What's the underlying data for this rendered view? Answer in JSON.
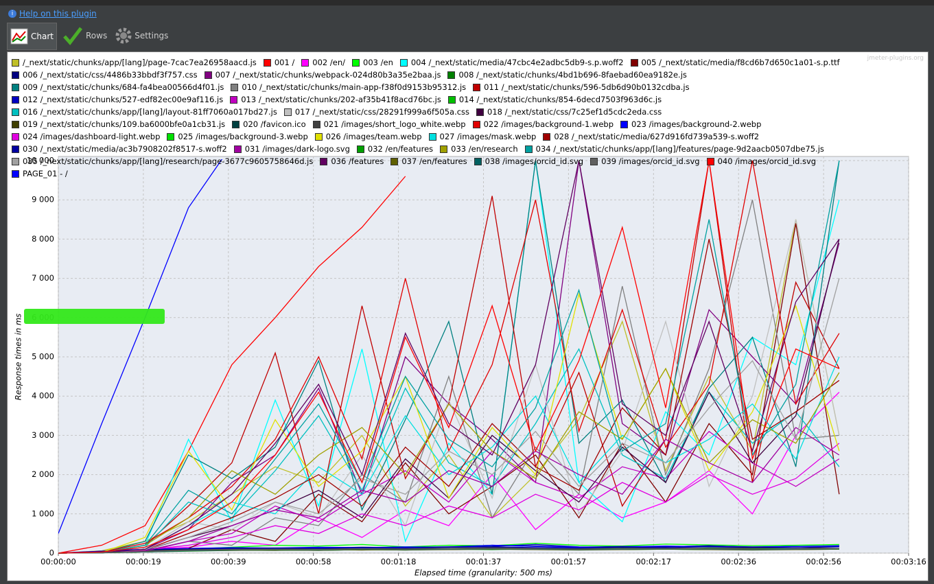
{
  "ui": {
    "help_link": "Help on this plugin",
    "tabs": [
      "Chart",
      "Rows",
      "Settings"
    ],
    "watermark": "jmeter-plugins.org"
  },
  "chart_data": {
    "type": "line",
    "y_label": "Response times in ms",
    "x_label": "Elapsed time (granularity: 500 ms)",
    "xlim": [
      0,
      196
    ],
    "xticks": [
      {
        "value": 0,
        "label": "00:00:00"
      },
      {
        "value": 19.6,
        "label": "00:00:19"
      },
      {
        "value": 39.2,
        "label": "00:00:39"
      },
      {
        "value": 58.8,
        "label": "00:00:58"
      },
      {
        "value": 78.4,
        "label": "00:01:18"
      },
      {
        "value": 98,
        "label": "00:01:37"
      },
      {
        "value": 117.6,
        "label": "00:01:57"
      },
      {
        "value": 137.2,
        "label": "00:02:17"
      },
      {
        "value": 156.8,
        "label": "00:02:36"
      },
      {
        "value": 176.4,
        "label": "00:02:56"
      },
      {
        "value": 196,
        "label": "00:03:16"
      }
    ],
    "ylim": [
      0,
      10000
    ],
    "yticks": [
      0,
      {
        "value": 1000,
        "label": "1 000"
      },
      {
        "value": 2000,
        "label": "2 000"
      },
      {
        "value": 3000,
        "label": "3 000"
      },
      {
        "value": 4000,
        "label": "4 000"
      },
      {
        "value": 5000,
        "label": "5 000"
      },
      {
        "value": 6000,
        "label": "6 000"
      },
      {
        "value": 7000,
        "label": "7 000"
      },
      {
        "value": 8000,
        "label": "8 000"
      },
      {
        "value": 9000,
        "label": "9 000"
      },
      {
        "value": 10000,
        "label": "10 000"
      }
    ],
    "grid": true,
    "x": [
      0,
      10,
      20,
      30,
      40,
      50,
      60,
      70,
      80,
      90,
      100,
      110,
      120,
      130,
      140,
      150,
      160,
      170,
      180
    ],
    "series": [
      {
        "name": "/_next/static/chunks/app/[lang]/page-7cac7ea26958aacd.js",
        "color": "#bfbf28",
        "values": [
          0,
          60,
          300,
          800,
          1500,
          2200,
          1800,
          3000,
          1200,
          2500,
          900,
          2000,
          3400,
          5900,
          2100,
          4500,
          2600,
          8500,
          3000
        ]
      },
      {
        "name": "001 /",
        "color": "#ff0000",
        "values": [
          0,
          200,
          700,
          2600,
          4800,
          6000,
          7300,
          8300,
          9600,
          null,
          null,
          null,
          null,
          null,
          null,
          null,
          null,
          null,
          null
        ]
      },
      {
        "name": "002 /en/",
        "color": "#ff00ff",
        "values": [
          0,
          20,
          100,
          150,
          300,
          200,
          900,
          400,
          1100,
          700,
          2000,
          600,
          1500,
          900,
          1300,
          2100,
          1000,
          3000,
          4100
        ]
      },
      {
        "name": "003 /en",
        "color": "#00ff00",
        "values": [
          0,
          20,
          60,
          100,
          150,
          200,
          180,
          220,
          160,
          200,
          190,
          250,
          200,
          180,
          230,
          210,
          190,
          200,
          220
        ]
      },
      {
        "name": "004 /_next/static/media/47cbc4e2adbc5db9-s.p.woff2",
        "color": "#00ffff",
        "values": [
          0,
          30,
          200,
          2900,
          800,
          3900,
          1200,
          5200,
          300,
          2800,
          1500,
          10000,
          1800,
          800,
          3600,
          2500,
          5500,
          4800,
          9000
        ]
      },
      {
        "name": "005 /_next/static/media/f8cd6b7d650c1a01-s.p.ttf",
        "color": "#800000",
        "values": [
          0,
          10,
          50,
          120,
          600,
          300,
          1500,
          800,
          2300,
          1000,
          1700,
          2500,
          900,
          2800,
          1300,
          3300,
          2000,
          8400,
          1500
        ]
      },
      {
        "name": "006 /_next/static/css/4486b33bbdf3f757.css",
        "color": "#000080",
        "values": [
          0,
          40,
          80,
          100,
          120,
          110,
          130,
          150,
          140,
          160,
          200,
          180,
          150,
          170,
          160,
          190,
          150,
          170,
          180
        ]
      },
      {
        "name": "007 /_next/static/chunks/webpack-024d80b3a35e2baa.js",
        "color": "#800080",
        "values": [
          0,
          10,
          100,
          600,
          1800,
          2500,
          4200,
          1500,
          5000,
          3800,
          2900,
          1800,
          10000,
          3300,
          2500,
          6200,
          5000,
          3800,
          7900
        ]
      },
      {
        "name": "008 /_next/static/chunks/4bd1b696-8faebad60ea9182e.js",
        "color": "#008000",
        "values": [
          0,
          10,
          50,
          80,
          90,
          100,
          120,
          90,
          110,
          100,
          130,
          120,
          110,
          100,
          120,
          90,
          110,
          100,
          120
        ]
      },
      {
        "name": "009 /_next/static/chunks/684-fa4bea00566d4f01.js",
        "color": "#008080",
        "values": [
          0,
          20,
          300,
          2500,
          1900,
          2700,
          4900,
          1100,
          3400,
          5900,
          1500,
          10000,
          2800,
          3900,
          1800,
          4200,
          5500,
          2200,
          10000
        ]
      },
      {
        "name": "010 /_next/static/chunks/main-app-f38f0d9153b95312.js",
        "color": "#808080",
        "values": [
          0,
          10,
          60,
          300,
          200,
          900,
          700,
          2000,
          1300,
          4500,
          900,
          2700,
          1500,
          6800,
          2000,
          4700,
          9000,
          2900,
          3000
        ]
      },
      {
        "name": "011 /_next/static/chunks/596-5db6d90b0132cdba.js",
        "color": "#c00000",
        "values": [
          0,
          20,
          200,
          1200,
          2300,
          5100,
          1000,
          6300,
          1900,
          3800,
          9100,
          2200,
          4600,
          1200,
          2900,
          10000,
          1800,
          6900,
          4700
        ]
      },
      {
        "name": "012 /_next/static/chunks/527-edf82ec00e9af116.js",
        "color": "#0000c0",
        "values": [
          0,
          50,
          90,
          110,
          130,
          120,
          140,
          130,
          150,
          160,
          170,
          220,
          160,
          150,
          170,
          180,
          160,
          170,
          190
        ]
      },
      {
        "name": "013 /_next/static/chunks/202-af35b41f8acd76bc.js",
        "color": "#c000c0",
        "values": [
          0,
          10,
          40,
          300,
          500,
          1200,
          800,
          1500,
          2100,
          1300,
          2600,
          1800,
          1400,
          2200,
          1900,
          3100,
          2300,
          1700,
          2400
        ]
      },
      {
        "name": "014 /_next/static/chunks/854-6decd7503f963d6c.js",
        "color": "#00c000",
        "values": [
          0,
          10,
          30,
          70,
          90,
          100,
          90,
          110,
          100,
          120,
          130,
          110,
          100,
          120,
          110,
          130,
          120,
          110,
          100
        ]
      },
      {
        "name": "016 /_next/static/chunks/app/[lang]/layout-81ff7060a017bd27.js",
        "color": "#00c0c0",
        "values": [
          0,
          20,
          150,
          1300,
          900,
          2100,
          3500,
          1600,
          4200,
          2300,
          1700,
          3300,
          5200,
          2500,
          1900,
          4100,
          2800,
          3600,
          2200
        ]
      },
      {
        "name": "017 /_next/static/css/28291f999a6f505a.css",
        "color": "#c0c0c0",
        "values": [
          0,
          20,
          100,
          800,
          600,
          1300,
          900,
          2500,
          700,
          3900,
          1400,
          4800,
          1000,
          2600,
          5900,
          1700,
          4000,
          8500,
          3000
        ]
      },
      {
        "name": "018 /_next/static/css/7c25ef1d5cdc2eda.css",
        "color": "#400040",
        "values": [
          0,
          10,
          80,
          400,
          700,
          1100,
          1600,
          900,
          2400,
          1400,
          3000,
          2100,
          1300,
          2700,
          1800,
          4100,
          2300,
          3500,
          8000
        ]
      },
      {
        "name": "019 /_next/static/chunks/109.ba6000bfe0a1cb31.js",
        "color": "#404000",
        "values": [
          0,
          10,
          40,
          60,
          80,
          70,
          90,
          80,
          100,
          90,
          110,
          100,
          90,
          100,
          110,
          90,
          100,
          90,
          100
        ]
      },
      {
        "name": "020 /favicon.ico",
        "color": "#004040",
        "values": [
          0,
          10,
          40,
          70,
          80,
          90,
          80,
          100,
          90,
          110,
          100,
          120,
          100,
          90,
          110,
          100,
          90,
          100,
          110
        ]
      },
      {
        "name": "021 /images/short_logo_white.webp",
        "color": "#404040",
        "values": [
          0,
          10,
          60,
          90,
          110,
          100,
          120,
          110,
          130,
          120,
          140,
          130,
          120,
          140,
          130,
          120,
          130,
          140,
          120
        ]
      },
      {
        "name": "022 /images/background-1.webp",
        "color": "#e00000",
        "values": [
          0,
          30,
          250,
          900,
          1700,
          2900,
          5000,
          2400,
          7000,
          2600,
          4800,
          9000,
          3100,
          6200,
          2700,
          4300,
          10000,
          3800,
          5600
        ]
      },
      {
        "name": "023 /images/background-2.webp",
        "color": "#0000ff",
        "values": [
          0,
          50,
          100,
          120,
          140,
          130,
          150,
          140,
          160,
          150,
          200,
          170,
          150,
          160,
          180,
          160,
          150,
          170,
          180
        ]
      },
      {
        "name": "024 /images/dashboard-light.webp",
        "color": "#e000e0",
        "values": [
          0,
          10,
          80,
          200,
          400,
          700,
          500,
          1000,
          700,
          1200,
          900,
          1500,
          1100,
          1800,
          1300,
          2000,
          1500,
          1900,
          2800
        ]
      },
      {
        "name": "025 /images/background-3.webp",
        "color": "#00e000",
        "values": [
          0,
          10,
          30,
          60,
          80,
          90,
          80,
          100,
          90,
          100,
          110,
          100,
          90,
          110,
          100,
          90,
          100,
          110,
          100
        ]
      },
      {
        "name": "026 /images/team.webp",
        "color": "#e0e000",
        "values": [
          0,
          20,
          400,
          2600,
          1100,
          3400,
          1700,
          2600,
          4500,
          1400,
          3200,
          2000,
          6600,
          2900,
          4700,
          2100,
          3600,
          6300,
          2600
        ]
      },
      {
        "name": "027 /images/mask.webp",
        "color": "#00e0e0",
        "values": [
          0,
          10,
          100,
          700,
          1300,
          1000,
          2200,
          1500,
          3500,
          2000,
          2700,
          4000,
          1800,
          3000,
          2300,
          2900,
          3800,
          2400,
          5000
        ]
      },
      {
        "name": "028 /_next/static/media/627d916fd739a539-s.woff2",
        "color": "#a00000",
        "values": [
          0,
          10,
          80,
          500,
          900,
          1400,
          2000,
          1200,
          2700,
          1700,
          3300,
          2200,
          1600,
          3700,
          2500,
          8000,
          2900,
          3600,
          4400
        ]
      },
      {
        "name": "030 /_next/static/media/ac3b7908202f8517-s.woff2",
        "color": "#0000a0",
        "values": [
          0,
          40,
          90,
          110,
          120,
          130,
          120,
          140,
          130,
          150,
          160,
          140,
          130,
          150,
          140,
          160,
          150,
          140,
          160
        ]
      },
      {
        "name": "031 /images/dark-logo.svg",
        "color": "#a000a0",
        "values": [
          0,
          10,
          60,
          300,
          700,
          1100,
          900,
          1600,
          1300,
          2100,
          1700,
          2600,
          2000,
          1500,
          2900,
          2300,
          1800,
          3200,
          2500
        ]
      },
      {
        "name": "032 /en/features",
        "color": "#00a000",
        "values": [
          0,
          10,
          30,
          50,
          70,
          80,
          70,
          90,
          80,
          100,
          90,
          110,
          100,
          90,
          100,
          110,
          90,
          100,
          110
        ]
      },
      {
        "name": "033 /en/research",
        "color": "#a0a000",
        "values": [
          0,
          10,
          200,
          900,
          2100,
          1500,
          2500,
          3200,
          2000,
          3800,
          2600,
          1900,
          3600,
          2900,
          4700,
          2300,
          3400,
          2800,
          4600
        ]
      },
      {
        "name": "034 /_next/static/chunks/app/[lang]/features/page-9d2aacb0507dbe75.js",
        "color": "#00a0a0",
        "values": [
          0,
          20,
          200,
          1600,
          1000,
          2400,
          3800,
          1800,
          4500,
          2900,
          2200,
          3700,
          6700,
          2600,
          3300,
          8500,
          2500,
          4300,
          10000
        ]
      },
      {
        "name": "035 /_next/static/chunks/app/[lang]/research/page-3677c9605758646d.js",
        "color": "#a0a0a0",
        "values": [
          0,
          10,
          90,
          400,
          800,
          1300,
          1000,
          1900,
          1500,
          2600,
          2000,
          3100,
          1700,
          2800,
          2300,
          3700,
          4900,
          2900,
          7000
        ]
      },
      {
        "name": "036 /features",
        "color": "#600060",
        "values": [
          0,
          10,
          100,
          700,
          1500,
          2800,
          4300,
          2000,
          5600,
          3300,
          2500,
          4800,
          10000,
          3800,
          3000,
          5900,
          2600,
          6400,
          8000
        ]
      },
      {
        "name": "037 /en/features",
        "color": "#606000",
        "values": [
          0,
          10,
          30,
          60,
          70,
          80,
          70,
          90,
          80,
          90,
          100,
          90,
          80,
          90,
          100,
          90,
          80,
          90,
          100
        ]
      },
      {
        "name": "038 /images/orcid_id.svg",
        "color": "#006060",
        "values": [
          0,
          10,
          30,
          60,
          80,
          90,
          80,
          100,
          90,
          100,
          110,
          100,
          90,
          100,
          110,
          100,
          90,
          100,
          110
        ]
      },
      {
        "name": "039 /images/orcid_id.svg",
        "color": "#606060",
        "values": [
          0,
          10,
          40,
          70,
          90,
          100,
          90,
          110,
          100,
          110,
          120,
          110,
          100,
          110,
          120,
          110,
          100,
          110,
          120
        ]
      },
      {
        "name": "040 /images/orcid_id.svg",
        "color": "#ff0000",
        "values": [
          0,
          30,
          150,
          600,
          1300,
          2500,
          4100,
          1800,
          5500,
          3200,
          6300,
          2600,
          4900,
          8300,
          3700,
          10000,
          2400,
          5200,
          4700
        ]
      },
      {
        "name": "PAGE_01 - /",
        "color": "#0000ff",
        "values": [
          500,
          3300,
          6000,
          8800,
          10400,
          null,
          null,
          null,
          null,
          null,
          null,
          null,
          null,
          null,
          null,
          null,
          null,
          null,
          null
        ]
      }
    ]
  }
}
